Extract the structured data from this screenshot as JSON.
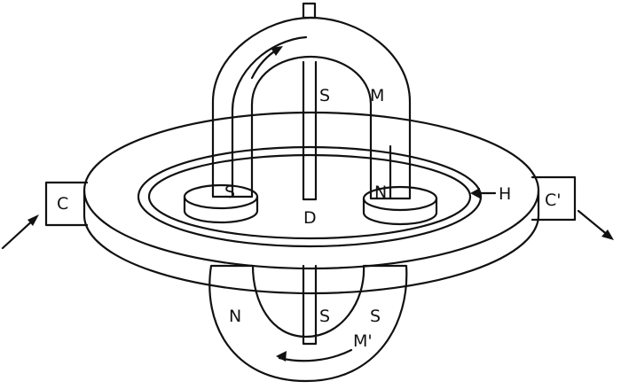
{
  "labels": {
    "M_top": "M",
    "S_top": "S",
    "S_left_pole": "S",
    "N_right_pole": "N",
    "D": "D",
    "H": "H",
    "C": "C",
    "C_prime": "C'",
    "N_lower": "N",
    "S_lower_left": "S",
    "S_lower_right": "S",
    "M_prime": "M'"
  },
  "colors": {
    "ink": "#111111",
    "paper": "#ffffff"
  }
}
